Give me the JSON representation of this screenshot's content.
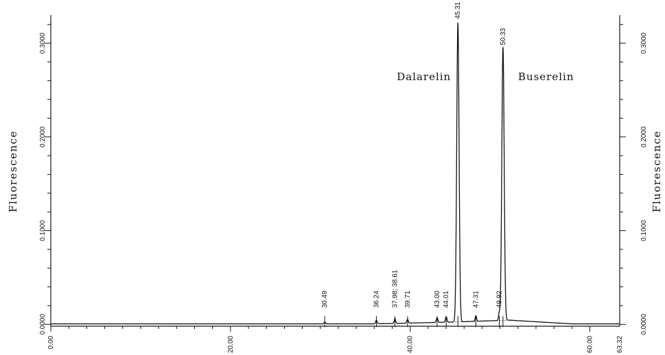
{
  "chart_data": {
    "type": "line",
    "ylabel_left": "Fluorescence",
    "ylabel_right": "Fluorescence",
    "xlim": [
      0,
      63.32
    ],
    "ylim": [
      -0.002,
      0.33
    ],
    "x_ticks": [
      {
        "value": 0,
        "label": "0.00"
      },
      {
        "value": 20,
        "label": "20.00"
      },
      {
        "value": 40,
        "label": "40.00"
      },
      {
        "value": 60,
        "label": "60.00"
      },
      {
        "value": 63.32,
        "label": "63.32"
      }
    ],
    "y_ticks": [
      {
        "value": 0.0,
        "label": "0.0000"
      },
      {
        "value": 0.1,
        "label": "0.1000"
      },
      {
        "value": 0.2,
        "label": "0.2000"
      },
      {
        "value": 0.3,
        "label": "0.3000"
      }
    ],
    "compounds": [
      {
        "name": "Dalarelin",
        "x": 45.31
      },
      {
        "name": "Buserelin",
        "x": 50.33
      }
    ],
    "peaks": [
      {
        "label": "30.49",
        "x": 30.49,
        "y": 0.002
      },
      {
        "label": "36.24",
        "x": 36.24,
        "y": 0.004
      },
      {
        "label": "37.98; 38.61",
        "x": 38.3,
        "y": 0.005
      },
      {
        "label": "39.71",
        "x": 39.71,
        "y": 0.004
      },
      {
        "label": "43.00",
        "x": 43.0,
        "y": 0.005
      },
      {
        "label": "44.01",
        "x": 44.01,
        "y": 0.006
      },
      {
        "label": "45.31",
        "x": 45.31,
        "y": 0.32
      },
      {
        "label": "47.31",
        "x": 47.31,
        "y": 0.006
      },
      {
        "label": "49.92",
        "x": 49.92,
        "y": 0.008
      },
      {
        "label": "50.33",
        "x": 50.33,
        "y": 0.292
      }
    ]
  }
}
